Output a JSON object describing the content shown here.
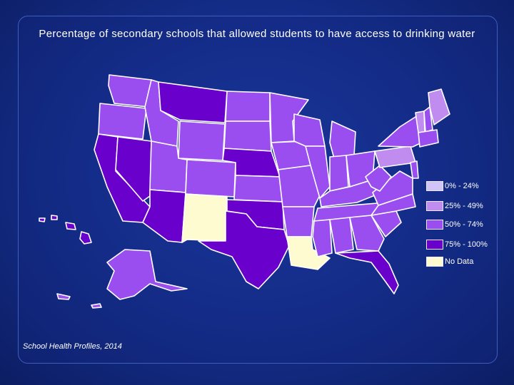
{
  "title": "Percentage of secondary schools that allowed students to have access to drinking water",
  "source": "School Health Profiles, 2014",
  "colors": {
    "c0": "#d3c4f7",
    "c1": "#c08cf0",
    "c2": "#9a4ef0",
    "c3": "#6a00cc",
    "nodata": "#fffbd0"
  },
  "legend": [
    {
      "label": "0% - 24%",
      "color_key": "c0"
    },
    {
      "label": "25% - 49%",
      "color_key": "c1"
    },
    {
      "label": "50% - 74%",
      "color_key": "c2"
    },
    {
      "label": "75% - 100%",
      "color_key": "c3"
    },
    {
      "label": "No Data",
      "color_key": "nodata"
    }
  ],
  "states": {
    "WA": "c2",
    "OR": "c2",
    "CA": "c3",
    "NV": "c3",
    "ID": "c2",
    "MT": "c3",
    "WY": "c2",
    "UT": "c2",
    "AZ": "c3",
    "NM": "nodata",
    "CO": "c2",
    "ND": "c2",
    "SD": "c2",
    "NE": "c3",
    "KS": "c2",
    "OK": "c3",
    "TX": "c3",
    "MN": "c2",
    "IA": "c2",
    "MO": "c2",
    "AR": "c2",
    "LA": "nodata",
    "WI": "c2",
    "IL": "c2",
    "MI": "c2",
    "IN": "c2",
    "OH": "c2",
    "KY": "c2",
    "TN": "c2",
    "MS": "c2",
    "AL": "c2",
    "GA": "c2",
    "FL": "c3",
    "SC": "c2",
    "NC": "c2",
    "VA": "c2",
    "WV": "c2",
    "PA": "c1",
    "NY": "c2",
    "ME": "c1",
    "VT": "c1",
    "NH": "c2",
    "NE_small": "c2",
    "AK": "c2",
    "HI": "c3"
  }
}
